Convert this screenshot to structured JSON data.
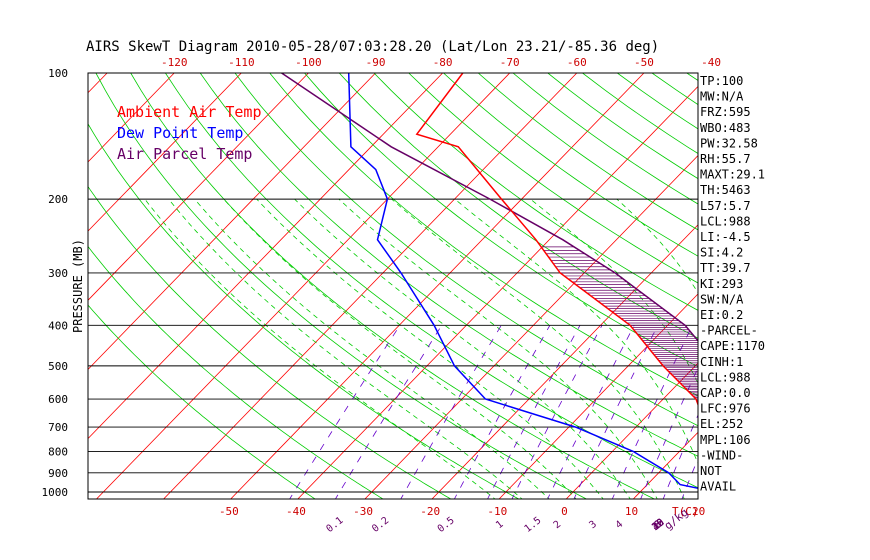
{
  "chart_data": {
    "type": "skewt",
    "title": "AIRS SkewT Diagram 2010-05-28/07:03:28.20 (Lat/Lon 23.21/-85.36 deg)",
    "ylabel": "PRESSURE (MB)",
    "xlabel": "T(C)",
    "mixing_ratio_unit": "g/kg",
    "legend": [
      {
        "label": "Ambient Air Temp",
        "color": "#ff0000"
      },
      {
        "label": "Dew Point Temp",
        "color": "#0000ff"
      },
      {
        "label": "Air Parcel Temp",
        "color": "#660066"
      }
    ],
    "pressure_ticks": [
      100,
      200,
      300,
      400,
      500,
      600,
      700,
      800,
      900,
      1000
    ],
    "temp_bottom_ticks": [
      -50,
      -40,
      -30,
      -20,
      -10,
      0,
      10,
      20
    ],
    "temp_top_ticks": [
      -120,
      -110,
      -100,
      -90,
      -80,
      -70,
      -60,
      -50,
      -40
    ],
    "mixing_ratio_labels": [
      "0.1",
      "0.2",
      "0.5",
      "1",
      "1.5",
      "2",
      "3",
      "4",
      "6",
      "8",
      "10",
      "12",
      "15",
      "20",
      "25",
      "30",
      "40"
    ],
    "mixing_ratio_values": [
      0.1,
      0.2,
      0.5,
      1,
      1.5,
      2,
      3,
      4,
      6,
      8,
      10,
      12,
      15,
      20,
      25,
      30,
      40
    ],
    "ambient_temp": [
      {
        "p": 1012,
        "t": 25.3
      },
      {
        "p": 960,
        "t": 20.4
      },
      {
        "p": 900,
        "t": 21.4
      },
      {
        "p": 800,
        "t": 17.1
      },
      {
        "p": 700,
        "t": 10.5
      },
      {
        "p": 600,
        "t": 4.9
      },
      {
        "p": 500,
        "t": -4.8
      },
      {
        "p": 400,
        "t": -15.6
      },
      {
        "p": 300,
        "t": -33.6
      },
      {
        "p": 250,
        "t": -42
      },
      {
        "p": 200,
        "t": -53
      },
      {
        "p": 150,
        "t": -67
      },
      {
        "p": 140,
        "t": -75
      },
      {
        "p": 100,
        "t": -77
      }
    ],
    "dewpoint_temp": [
      {
        "p": 1012,
        "t": 23.3
      },
      {
        "p": 960,
        "t": 14.9
      },
      {
        "p": 900,
        "t": 11.5
      },
      {
        "p": 800,
        "t": 3.1
      },
      {
        "p": 700,
        "t": -9.0
      },
      {
        "p": 600,
        "t": -26.5
      },
      {
        "p": 500,
        "t": -35.9
      },
      {
        "p": 400,
        "t": -44.8
      },
      {
        "p": 300,
        "t": -57.3
      },
      {
        "p": 250,
        "t": -65.6
      },
      {
        "p": 200,
        "t": -70
      },
      {
        "p": 170,
        "t": -76
      },
      {
        "p": 150,
        "t": -83
      },
      {
        "p": 100,
        "t": -94
      }
    ],
    "parcel_temp": [
      {
        "p": 1012,
        "t": 25.3
      },
      {
        "p": 988,
        "t": 23.4
      },
      {
        "p": 900,
        "t": 24.9
      },
      {
        "p": 800,
        "t": 21.2
      },
      {
        "p": 700,
        "t": 16.6
      },
      {
        "p": 600,
        "t": 10.9
      },
      {
        "p": 500,
        "t": 3.5
      },
      {
        "p": 400,
        "t": -7.4
      },
      {
        "p": 300,
        "t": -25.4
      },
      {
        "p": 250,
        "t": -38
      },
      {
        "p": 200,
        "t": -54.7
      },
      {
        "p": 150,
        "t": -77
      },
      {
        "p": 100,
        "t": -104
      }
    ],
    "indices": [
      "TP:100",
      "MW:N/A",
      "FRZ:595",
      "WBO:483",
      "PW:32.58",
      "RH:55.7",
      "MAXT:29.1",
      "TH:5463",
      "L57:5.7",
      "LCL:988",
      "LI:-4.5",
      "SI:4.2",
      "TT:39.7",
      "KI:293",
      "SW:N/A",
      "EI:0.2",
      "-PARCEL-",
      "CAPE:1170",
      "CINH:1",
      "LCL:988",
      "CAP:0.0",
      "LFC:976",
      "EL:252",
      "MPL:106",
      "-WIND-",
      "NOT",
      "AVAIL"
    ],
    "colors": {
      "isotherm": "#ff0000",
      "dry_adiabat": "#00cc00",
      "moist_adiabat": "#00cc00",
      "mixing_ratio": "#6600cc",
      "isobar": "#000000",
      "axis_text": "#cc0000",
      "dewpoint": "#0000ff",
      "parcel": "#660066"
    }
  }
}
